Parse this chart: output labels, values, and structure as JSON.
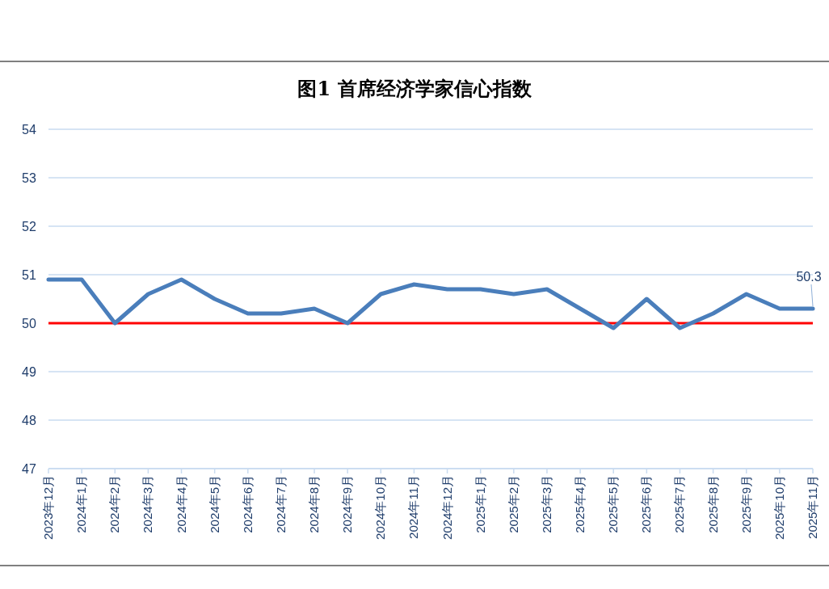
{
  "chart_data": {
    "type": "line",
    "title": "图1 首席经济学家信心指数",
    "categories": [
      "2023年12月",
      "2024年1月",
      "2024年2月",
      "2024年3月",
      "2024年4月",
      "2024年5月",
      "2024年6月",
      "2024年7月",
      "2024年8月",
      "2024年9月",
      "2024年10月",
      "2024年11月",
      "2024年12月",
      "2025年1月",
      "2025年2月",
      "2025年3月",
      "2025年4月",
      "2025年5月",
      "2025年6月",
      "2025年7月",
      "2025年8月",
      "2025年9月",
      "2025年10月",
      "2025年11月"
    ],
    "values": [
      50.9,
      50.9,
      50.0,
      50.6,
      50.9,
      50.5,
      50.2,
      50.2,
      50.3,
      50.0,
      50.6,
      50.8,
      50.7,
      50.7,
      50.6,
      50.7,
      50.3,
      49.9,
      50.5,
      49.9,
      50.2,
      50.6,
      50.3,
      50.3
    ],
    "value_labels": [
      null,
      null,
      null,
      null,
      null,
      null,
      null,
      null,
      null,
      null,
      null,
      null,
      null,
      null,
      null,
      null,
      null,
      null,
      null,
      null,
      null,
      null,
      null,
      "50.3"
    ],
    "color": "#4a7ebb",
    "ylim": [
      47,
      54
    ],
    "yticks": [
      47,
      48,
      49,
      50,
      51,
      52,
      53,
      54
    ],
    "grid": "y",
    "ref_lines": [
      {
        "axis": "y",
        "value": 50,
        "color": "#ff0000"
      }
    ]
  }
}
